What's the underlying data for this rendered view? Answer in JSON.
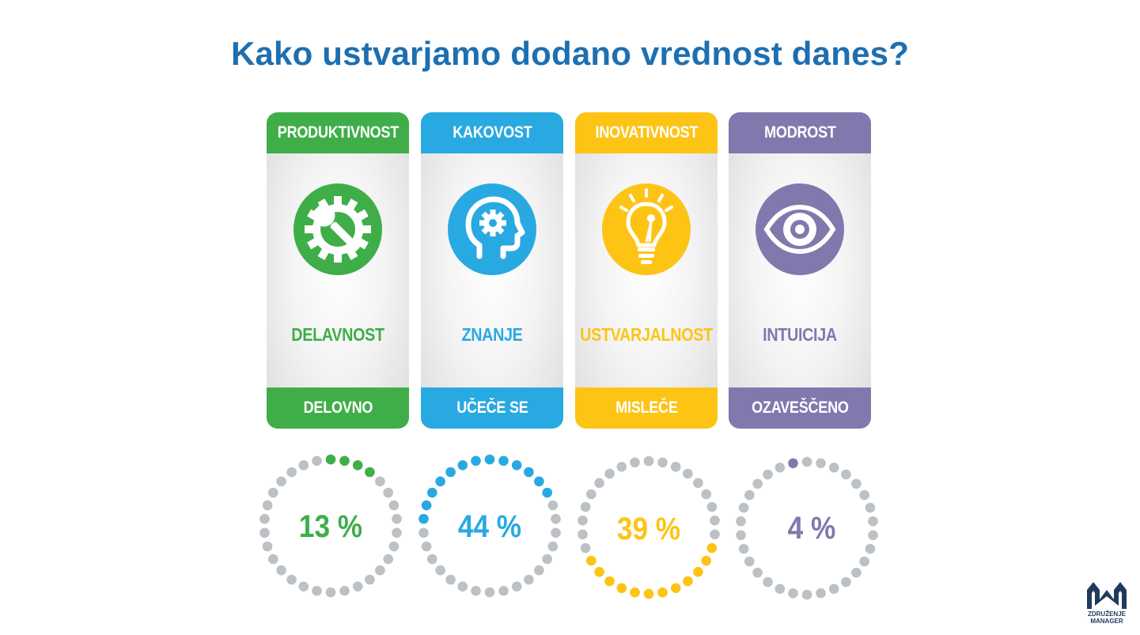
{
  "title": "Kako ustvarjamo dodano vrednost danes?",
  "cards": [
    {
      "top": "PRODUKTIVNOST",
      "middle": "DELAVNOST",
      "bottom": "DELOVNO",
      "icon": "gear-wrench-icon",
      "color": "#3fae49",
      "percent": 13,
      "percent_label": "13 %"
    },
    {
      "top": "KAKOVOST",
      "middle": "ZNANJE",
      "bottom": "UČEČE SE",
      "icon": "head-gear-icon",
      "color": "#29a9e1",
      "percent": 44,
      "percent_label": "44 %"
    },
    {
      "top": "INOVATIVNOST",
      "middle": "USTVARJALNOST",
      "bottom": "MISLEČE",
      "icon": "lightbulb-icon",
      "color": "#fdc416",
      "percent": 39,
      "percent_label": "39 %"
    },
    {
      "top": "MODROST",
      "middle": "INTUICIJA",
      "bottom": "OZAVEŠČENO",
      "icon": "eye-icon",
      "color": "#8378ad",
      "percent": 4,
      "percent_label": "4 %"
    }
  ],
  "ring_inactive_color": "#bcc1c5",
  "logo": {
    "line1": "ZDRUŽENJE",
    "line2": "MANAGER",
    "color": "#1f3b5c"
  }
}
